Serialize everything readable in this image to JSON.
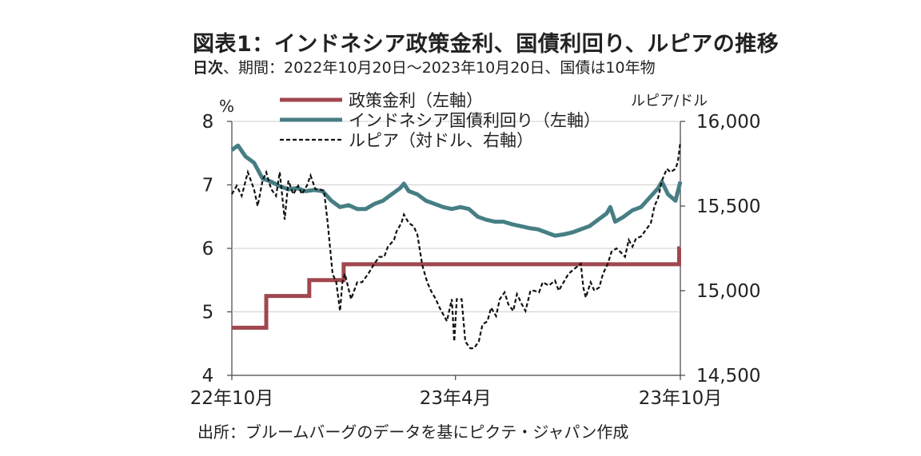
{
  "title": "図表1：インドネシア政策金利、国債利回り、ルピアの推移",
  "subtitle_lead": "日次",
  "subtitle_rest": "、期間：2022年10月20日～2023年10月20日、国債は10年物",
  "source": "出所：ブルームバーグのデータを基にピクテ・ジャパン作成",
  "colors": {
    "policy_rate": "#a0474f",
    "bond_yield": "#467e84",
    "rupiah": "#111111"
  },
  "chart_data": {
    "type": "line",
    "left_axis_unit": "%",
    "right_axis_unit": "ルピア/ドル",
    "ylim_left": [
      4,
      8
    ],
    "ylim_right": [
      14500,
      16000
    ],
    "y_ticks_left": [
      "4",
      "5",
      "6",
      "7",
      "8"
    ],
    "y_ticks_right": [
      "14,500",
      "15,000",
      "15,500",
      "16,000"
    ],
    "x_ticks": [
      "22年10月",
      "23年4月",
      "23年10月"
    ],
    "x_range": [
      "2022-10-20",
      "2023-10-20"
    ],
    "legend": [
      {
        "label": "政策金利（左軸）",
        "style": "solid-thick",
        "color": "#a0474f"
      },
      {
        "label": "インドネシア国債利回り（左軸）",
        "style": "solid-thick",
        "color": "#467e84"
      },
      {
        "label": "ルピア（対ドル、右軸）",
        "style": "dashed",
        "color": "#111111"
      }
    ],
    "series": [
      {
        "name": "政策金利（左軸）",
        "axis": "left",
        "step": true,
        "points": [
          [
            "2022-10-20",
            4.75
          ],
          [
            "2022-11-17",
            5.25
          ],
          [
            "2022-12-22",
            5.5
          ],
          [
            "2023-01-19",
            5.75
          ],
          [
            "2023-10-19",
            6.0
          ]
        ]
      },
      {
        "name": "インドネシア国債利回り（左軸）",
        "axis": "left",
        "points": [
          [
            "2022-10-20",
            7.55
          ],
          [
            "2022-10-25",
            7.62
          ],
          [
            "2022-10-31",
            7.45
          ],
          [
            "2022-11-07",
            7.35
          ],
          [
            "2022-11-14",
            7.1
          ],
          [
            "2022-11-21",
            7.05
          ],
          [
            "2022-11-28",
            6.98
          ],
          [
            "2022-12-05",
            6.93
          ],
          [
            "2022-12-12",
            6.95
          ],
          [
            "2022-12-19",
            6.9
          ],
          [
            "2022-12-26",
            6.92
          ],
          [
            "2023-01-02",
            6.9
          ],
          [
            "2023-01-09",
            6.75
          ],
          [
            "2023-01-16",
            6.65
          ],
          [
            "2023-01-23",
            6.68
          ],
          [
            "2023-01-30",
            6.62
          ],
          [
            "2023-02-06",
            6.62
          ],
          [
            "2023-02-13",
            6.7
          ],
          [
            "2023-02-20",
            6.75
          ],
          [
            "2023-02-27",
            6.85
          ],
          [
            "2023-03-06",
            6.95
          ],
          [
            "2023-03-09",
            7.02
          ],
          [
            "2023-03-13",
            6.9
          ],
          [
            "2023-03-20",
            6.85
          ],
          [
            "2023-03-27",
            6.75
          ],
          [
            "2023-04-03",
            6.7
          ],
          [
            "2023-04-10",
            6.65
          ],
          [
            "2023-04-17",
            6.62
          ],
          [
            "2023-04-24",
            6.65
          ],
          [
            "2023-05-01",
            6.62
          ],
          [
            "2023-05-08",
            6.5
          ],
          [
            "2023-05-15",
            6.45
          ],
          [
            "2023-05-22",
            6.42
          ],
          [
            "2023-05-29",
            6.42
          ],
          [
            "2023-06-05",
            6.38
          ],
          [
            "2023-06-12",
            6.35
          ],
          [
            "2023-06-19",
            6.32
          ],
          [
            "2023-06-26",
            6.3
          ],
          [
            "2023-07-03",
            6.25
          ],
          [
            "2023-07-10",
            6.2
          ],
          [
            "2023-07-17",
            6.22
          ],
          [
            "2023-07-24",
            6.25
          ],
          [
            "2023-07-31",
            6.3
          ],
          [
            "2023-08-07",
            6.35
          ],
          [
            "2023-08-14",
            6.45
          ],
          [
            "2023-08-21",
            6.55
          ],
          [
            "2023-08-24",
            6.65
          ],
          [
            "2023-08-28",
            6.42
          ],
          [
            "2023-09-04",
            6.5
          ],
          [
            "2023-09-11",
            6.6
          ],
          [
            "2023-09-18",
            6.65
          ],
          [
            "2023-09-25",
            6.8
          ],
          [
            "2023-10-02",
            6.95
          ],
          [
            "2023-10-05",
            7.05
          ],
          [
            "2023-10-10",
            6.85
          ],
          [
            "2023-10-16",
            6.75
          ],
          [
            "2023-10-20",
            7.05
          ]
        ]
      },
      {
        "name": "ルピア（対ドル、右軸）",
        "axis": "right",
        "points": [
          [
            "2022-10-20",
            15570
          ],
          [
            "2022-10-24",
            15620
          ],
          [
            "2022-10-28",
            15560
          ],
          [
            "2022-11-02",
            15700
          ],
          [
            "2022-11-07",
            15600
          ],
          [
            "2022-11-10",
            15500
          ],
          [
            "2022-11-14",
            15650
          ],
          [
            "2022-11-17",
            15700
          ],
          [
            "2022-11-21",
            15600
          ],
          [
            "2022-11-25",
            15560
          ],
          [
            "2022-11-28",
            15700
          ],
          [
            "2022-12-02",
            15420
          ],
          [
            "2022-12-05",
            15650
          ],
          [
            "2022-12-09",
            15570
          ],
          [
            "2022-12-13",
            15620
          ],
          [
            "2022-12-16",
            15570
          ],
          [
            "2022-12-20",
            15620
          ],
          [
            "2022-12-23",
            15680
          ],
          [
            "2022-12-27",
            15600
          ],
          [
            "2022-12-30",
            15600
          ],
          [
            "2023-01-03",
            15590
          ],
          [
            "2023-01-06",
            15400
          ],
          [
            "2023-01-10",
            15100
          ],
          [
            "2023-01-13",
            15050
          ],
          [
            "2023-01-16",
            14880
          ],
          [
            "2023-01-18",
            15050
          ],
          [
            "2023-01-20",
            15100
          ],
          [
            "2023-01-25",
            14950
          ],
          [
            "2023-01-30",
            15050
          ],
          [
            "2023-02-03",
            15050
          ],
          [
            "2023-02-08",
            15100
          ],
          [
            "2023-02-13",
            15160
          ],
          [
            "2023-02-17",
            15200
          ],
          [
            "2023-02-21",
            15200
          ],
          [
            "2023-02-24",
            15260
          ],
          [
            "2023-03-01",
            15300
          ],
          [
            "2023-03-03",
            15350
          ],
          [
            "2023-03-07",
            15400
          ],
          [
            "2023-03-09",
            15450
          ],
          [
            "2023-03-13",
            15400
          ],
          [
            "2023-03-17",
            15380
          ],
          [
            "2023-03-20",
            15330
          ],
          [
            "2023-03-24",
            15150
          ],
          [
            "2023-03-28",
            15050
          ],
          [
            "2023-03-31",
            15000
          ],
          [
            "2023-04-04",
            14950
          ],
          [
            "2023-04-07",
            14900
          ],
          [
            "2023-04-10",
            14860
          ],
          [
            "2023-04-13",
            14820
          ],
          [
            "2023-04-17",
            14950
          ],
          [
            "2023-04-19",
            14700
          ],
          [
            "2023-04-21",
            14950
          ],
          [
            "2023-04-25",
            14950
          ],
          [
            "2023-04-28",
            14700
          ],
          [
            "2023-05-02",
            14660
          ],
          [
            "2023-05-05",
            14660
          ],
          [
            "2023-05-09",
            14700
          ],
          [
            "2023-05-12",
            14800
          ],
          [
            "2023-05-16",
            14820
          ],
          [
            "2023-05-19",
            14900
          ],
          [
            "2023-05-23",
            14850
          ],
          [
            "2023-05-26",
            14950
          ],
          [
            "2023-05-30",
            14990
          ],
          [
            "2023-06-02",
            14920
          ],
          [
            "2023-06-06",
            14880
          ],
          [
            "2023-06-09",
            14980
          ],
          [
            "2023-06-13",
            14920
          ],
          [
            "2023-06-16",
            14880
          ],
          [
            "2023-06-20",
            15000
          ],
          [
            "2023-06-23",
            15000
          ],
          [
            "2023-06-27",
            14990
          ],
          [
            "2023-06-30",
            15050
          ],
          [
            "2023-07-05",
            15030
          ],
          [
            "2023-07-10",
            15060
          ],
          [
            "2023-07-13",
            15000
          ],
          [
            "2023-07-17",
            15050
          ],
          [
            "2023-07-21",
            15100
          ],
          [
            "2023-07-26",
            15130
          ],
          [
            "2023-07-31",
            15160
          ],
          [
            "2023-08-02",
            15020
          ],
          [
            "2023-08-04",
            14960
          ],
          [
            "2023-08-08",
            15050
          ],
          [
            "2023-08-11",
            15000
          ],
          [
            "2023-08-15",
            15020
          ],
          [
            "2023-08-18",
            15100
          ],
          [
            "2023-08-22",
            15160
          ],
          [
            "2023-08-25",
            15230
          ],
          [
            "2023-08-29",
            15250
          ],
          [
            "2023-09-01",
            15230
          ],
          [
            "2023-09-05",
            15200
          ],
          [
            "2023-09-08",
            15300
          ],
          [
            "2023-09-11",
            15260
          ],
          [
            "2023-09-14",
            15310
          ],
          [
            "2023-09-18",
            15320
          ],
          [
            "2023-09-22",
            15360
          ],
          [
            "2023-09-26",
            15400
          ],
          [
            "2023-09-29",
            15500
          ],
          [
            "2023-10-02",
            15550
          ],
          [
            "2023-10-05",
            15650
          ],
          [
            "2023-10-09",
            15720
          ],
          [
            "2023-10-12",
            15700
          ],
          [
            "2023-10-16",
            15720
          ],
          [
            "2023-10-18",
            15760
          ],
          [
            "2023-10-20",
            15880
          ]
        ]
      }
    ]
  }
}
